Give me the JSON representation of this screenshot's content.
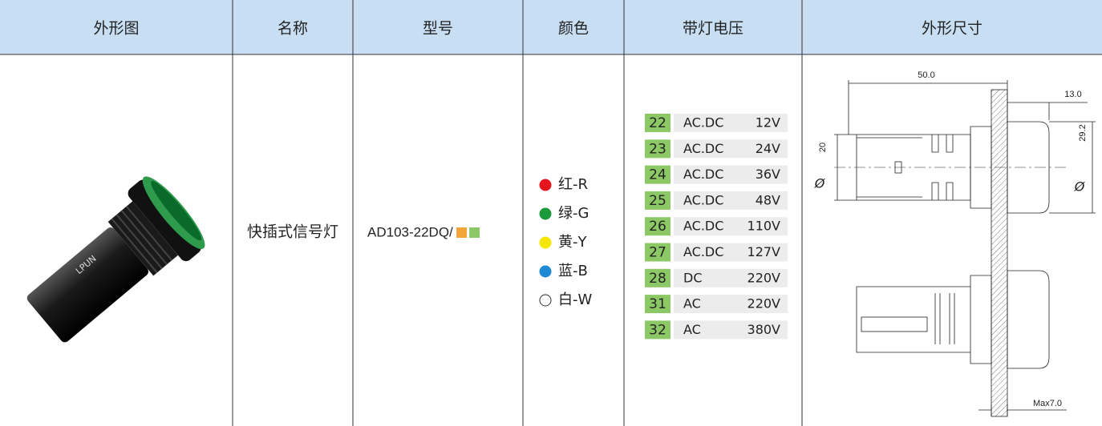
{
  "table": {
    "headers": [
      "外形图",
      "名称",
      "型号",
      "颜色",
      "带灯电压",
      "外形尺寸"
    ],
    "name": "快插式信号灯",
    "model": "AD103-22DQ/",
    "model_swatches": [
      "#f5a43a",
      "#8dc866"
    ],
    "colors": [
      {
        "label": "红-R",
        "color": "#e5141d"
      },
      {
        "label": "绿-G",
        "color": "#1a9a3a"
      },
      {
        "label": "黄-Y",
        "color": "#f7e600"
      },
      {
        "label": "蓝-B",
        "color": "#1e8ad6"
      },
      {
        "label": "白-W",
        "color": "#ffffff"
      }
    ],
    "voltages": [
      {
        "code": "22",
        "type": "AC.DC",
        "voltage": "12V"
      },
      {
        "code": "23",
        "type": "AC.DC",
        "voltage": "24V"
      },
      {
        "code": "24",
        "type": "AC.DC",
        "voltage": "36V"
      },
      {
        "code": "25",
        "type": "AC.DC",
        "voltage": "48V"
      },
      {
        "code": "26",
        "type": "AC.DC",
        "voltage": "110V"
      },
      {
        "code": "27",
        "type": "AC.DC",
        "voltage": "127V"
      },
      {
        "code": "28",
        "type": "DC",
        "voltage": "220V"
      },
      {
        "code": "31",
        "type": "AC",
        "voltage": "220V"
      },
      {
        "code": "32",
        "type": "AC",
        "voltage": "380V"
      }
    ]
  },
  "dimensions": {
    "width": "50.0",
    "front": "13.0",
    "diameter": "29.2",
    "body": "20",
    "phi_body": "Ø",
    "phi_front": "Ø",
    "panel": "Max7.0"
  }
}
